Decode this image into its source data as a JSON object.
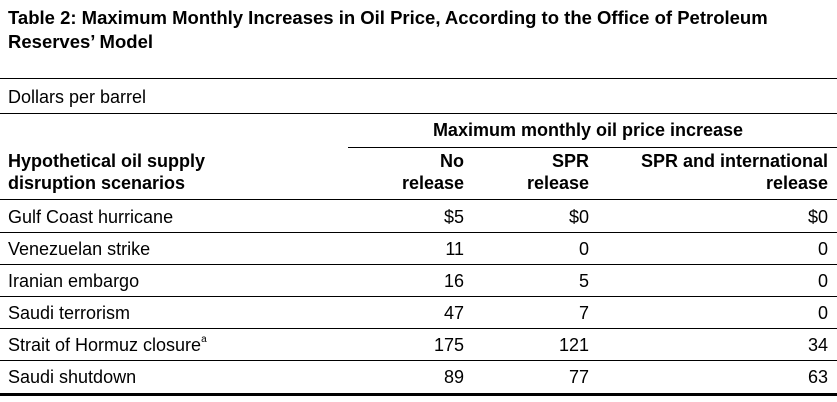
{
  "title": "Table 2:  Maximum Monthly Increases in Oil Price, According to the Office of Petroleum Reserves’ Model",
  "units": "Dollars per barrel",
  "spanner": "Maximum monthly oil price increase",
  "stub_header": [
    "Hypothetical oil supply",
    "disruption scenarios"
  ],
  "columns": [
    {
      "line1": "No",
      "line2": "release"
    },
    {
      "line1": "SPR",
      "line2": "release"
    },
    {
      "line1": "SPR and international",
      "line2": "release"
    }
  ],
  "rows": [
    {
      "label": "Gulf Coast hurricane",
      "note": "",
      "values": [
        "$5",
        "$0",
        "$0"
      ]
    },
    {
      "label": "Venezuelan strike",
      "note": "",
      "values": [
        "11",
        "0",
        "0"
      ]
    },
    {
      "label": "Iranian embargo",
      "note": "",
      "values": [
        "16",
        "5",
        "0"
      ]
    },
    {
      "label": "Saudi terrorism",
      "note": "",
      "values": [
        "47",
        "7",
        "0"
      ]
    },
    {
      "label": "Strait of Hormuz closure",
      "note": "a",
      "values": [
        "175",
        "121",
        "34"
      ]
    },
    {
      "label": "Saudi shutdown",
      "note": "",
      "values": [
        "89",
        "77",
        "63"
      ]
    }
  ]
}
